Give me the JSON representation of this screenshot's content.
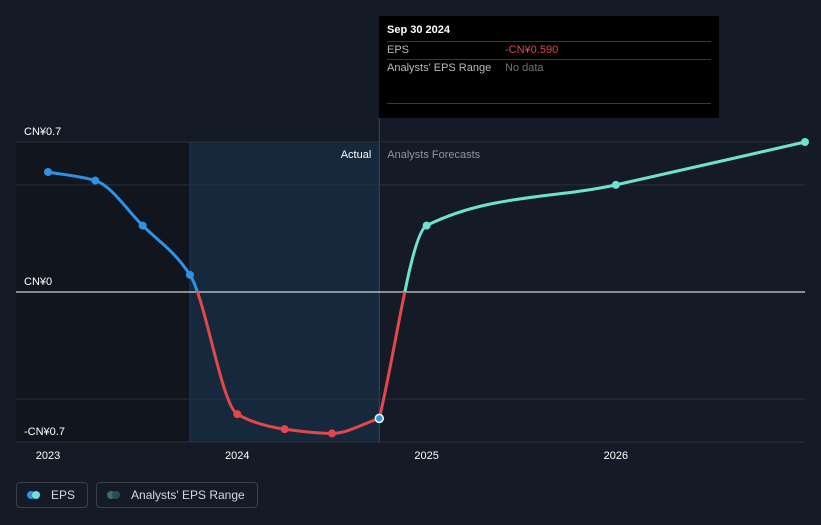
{
  "colors": {
    "background": "#151b26",
    "actual_line": "#2e93e6",
    "negative_line": "#e2474b",
    "forecast_line": "#6ee2d0",
    "highlight_band": "#16283b",
    "past_band": "#11161e",
    "gridline": "#2a303a",
    "zero_line": "#ffffff",
    "axis_text": "#ffffff",
    "range_dot_a": "#3c6a7a",
    "range_dot_b": "#2a4d5c"
  },
  "chart_data": {
    "type": "line",
    "title": "",
    "xlabel": "",
    "ylabel": "",
    "ylim": [
      -0.7,
      0.7
    ],
    "xlim": [
      2023.0,
      2026.999
    ],
    "y_tick_labels": [
      {
        "value": 0.7,
        "label": "CN¥0.7"
      },
      {
        "value": 0,
        "label": "CN¥0"
      },
      {
        "value": -0.7,
        "label": "-CN¥0.7"
      }
    ],
    "x_tick_labels": [
      {
        "value": 2023.0,
        "label": "2023"
      },
      {
        "value": 2024.0,
        "label": "2024"
      },
      {
        "value": 2025.0,
        "label": "2025"
      },
      {
        "value": 2026.0,
        "label": "2026"
      }
    ],
    "section_labels": {
      "actual": "Actual",
      "forecast": "Analysts Forecasts"
    },
    "highlight_range": [
      2023.75,
      2024.75
    ],
    "series": [
      {
        "name": "EPS",
        "kind": "actual",
        "points": [
          {
            "x": 2023.0,
            "y": 0.56
          },
          {
            "x": 2023.25,
            "y": 0.52
          },
          {
            "x": 2023.5,
            "y": 0.31
          },
          {
            "x": 2023.75,
            "y": 0.08
          },
          {
            "x": 2024.0,
            "y": -0.57
          },
          {
            "x": 2024.25,
            "y": -0.64
          },
          {
            "x": 2024.5,
            "y": -0.66
          },
          {
            "x": 2024.75,
            "y": -0.59
          }
        ]
      },
      {
        "name": "EPS",
        "kind": "forecast",
        "points": [
          {
            "x": 2024.75,
            "y": -0.59
          },
          {
            "x": 2025.0,
            "y": 0.31
          },
          {
            "x": 2026.0,
            "y": 0.5
          },
          {
            "x": 2026.999,
            "y": 0.7
          }
        ]
      }
    ]
  },
  "tooltip": {
    "date": "Sep 30 2024",
    "rows": [
      {
        "label": "EPS",
        "value": "-CN¥0.590"
      },
      {
        "label": "Analysts' EPS Range",
        "value": "No data"
      }
    ]
  },
  "legend": {
    "items": [
      {
        "label": "EPS"
      },
      {
        "label": "Analysts' EPS Range"
      }
    ]
  }
}
